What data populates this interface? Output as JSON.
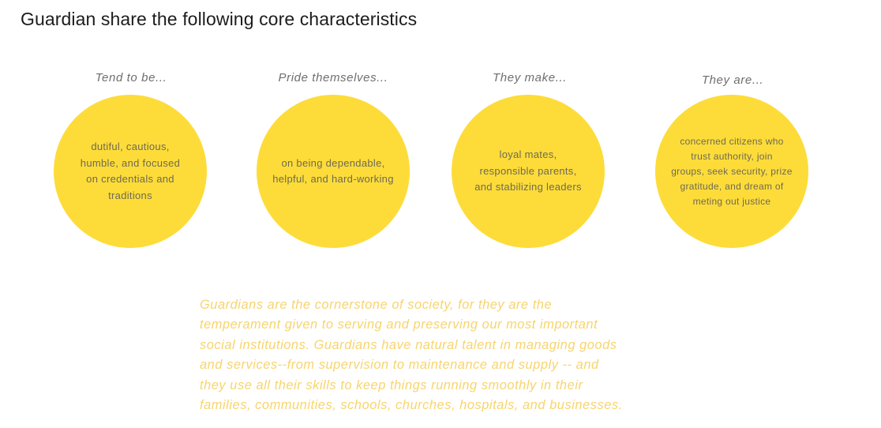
{
  "title": "Guardian share the following core characteristics",
  "traits": [
    {
      "heading": "Tend to be...",
      "lines": [
        "dutiful, cautious,",
        "humble, and focused",
        "on credentials and",
        "traditions"
      ]
    },
    {
      "heading": "Pride themselves...",
      "lines": [
        "on being dependable,",
        "helpful, and hard-working"
      ]
    },
    {
      "heading": "They make...",
      "lines": [
        "loyal mates,",
        "responsible parents,",
        "and stabilizing leaders"
      ]
    },
    {
      "heading": "They are...",
      "lines": [
        "concerned citizens who",
        "trust authority, join",
        "groups, seek security, prize",
        "gratitude, and dream of",
        "meting out justice"
      ]
    }
  ],
  "description": {
    "lines": [
      "Guardians are the cornerstone of society, for they are the",
      "temperament given to serving and preserving our most important",
      "social institutions. Guardians have natural talent in managing goods",
      "and services--from supervision to maintenance and supply -- and",
      "they use all their skills to keep things running smoothly in their",
      "families, communities, schools, churches, hospitals, and businesses."
    ]
  },
  "colors": {
    "circle": "#fddc3a",
    "heading": "#6e6e6e",
    "circle_text": "#6f6a52",
    "description": "#f7d46e",
    "title": "#1c1c1c"
  }
}
